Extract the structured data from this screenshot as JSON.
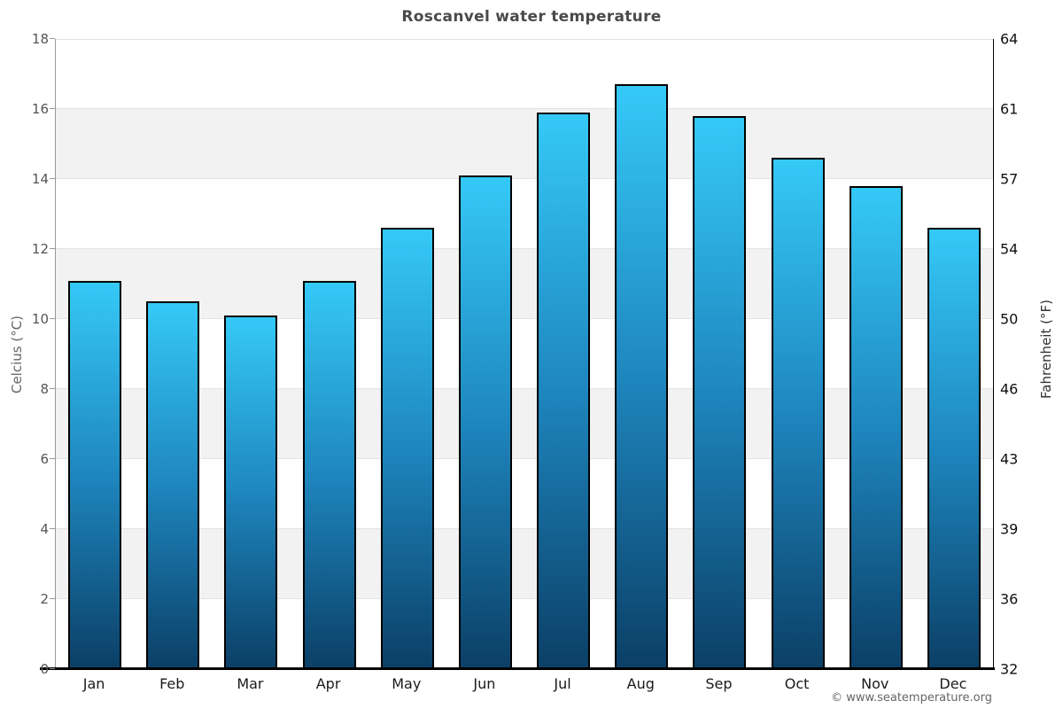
{
  "chart_data": {
    "type": "bar",
    "title": "Roscanvel water temperature",
    "series_name": "water temperature",
    "categories": [
      "Jan",
      "Feb",
      "Mar",
      "Apr",
      "May",
      "Jun",
      "Jul",
      "Aug",
      "Sep",
      "Oct",
      "Nov",
      "Dec"
    ],
    "values": [
      11.1,
      10.5,
      10.1,
      11.1,
      12.6,
      14.1,
      15.9,
      16.7,
      15.8,
      14.6,
      13.8,
      12.6
    ],
    "ylabel_left": "Celcius (°C)",
    "ylabel_right": "Fahrenheit (°F)",
    "yticks_celsius": [
      0,
      2,
      4,
      6,
      8,
      10,
      12,
      14,
      16,
      18
    ],
    "yticks_fahrenheit": [
      32,
      36,
      39,
      43,
      46,
      50,
      54,
      57,
      61,
      64
    ],
    "ylim": [
      0,
      18
    ],
    "grid": "horizontal gridlines every 2°C with alternating shaded bands",
    "legend": "none"
  },
  "footer": {
    "copyright": "© www.seatemperature.org"
  },
  "colors": {
    "bar_gradient_top": "#35c9f7",
    "bar_gradient_mid": "#1e86be",
    "bar_gradient_bottom": "#0b3f66",
    "bar_border": "#000000",
    "band_shaded": "#f2f2f2",
    "band_plain": "#ffffff",
    "gridline": "#e3e3e3",
    "axis_left_line": "#999999",
    "axis_right_line": "#000000",
    "axis_bottom_line": "#000000",
    "title_text": "#4a4a4a",
    "tick_label_left": "#555555",
    "tick_label_right": "#111111",
    "month_label": "#1a1a1a",
    "copyright_text": "#666666"
  }
}
